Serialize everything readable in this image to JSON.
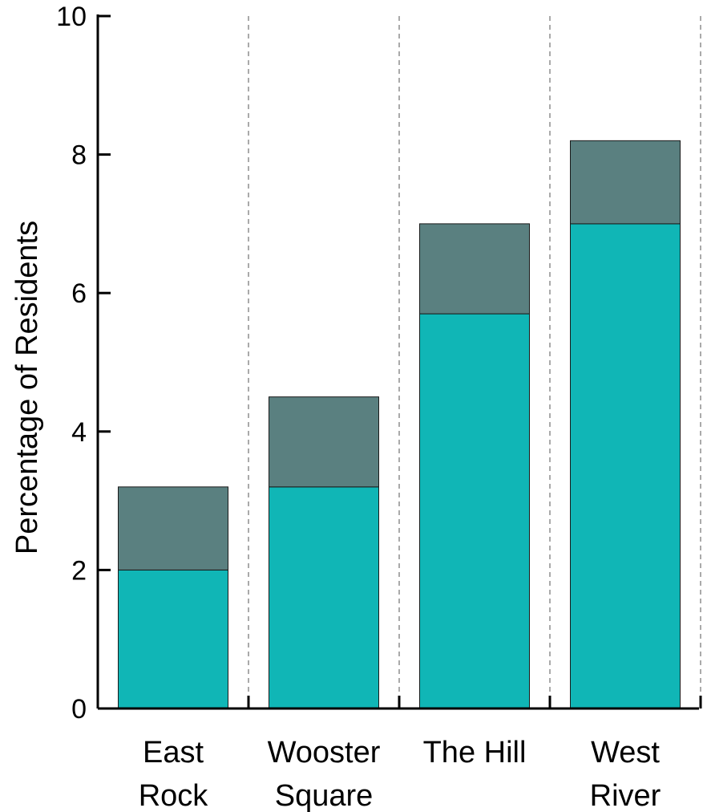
{
  "chart_data": {
    "type": "bar",
    "stacked": true,
    "categories": [
      [
        "East",
        "Rock"
      ],
      [
        "Wooster",
        "Square"
      ],
      [
        "The Hill"
      ],
      [
        "West",
        "River"
      ]
    ],
    "series": [
      {
        "values": [
          2.0,
          3.2,
          5.7,
          7.0
        ],
        "color": "#10b6b6"
      },
      {
        "values": [
          1.2,
          1.3,
          1.3,
          1.2
        ],
        "color": "#5a8080"
      }
    ],
    "totals": [
      3.2,
      4.5,
      7.0,
      8.2
    ],
    "ylabel": "Percentage of Residents",
    "ylim": [
      0,
      10
    ],
    "yticks": [
      "0",
      "2",
      "4",
      "6",
      "8",
      "10"
    ],
    "grid": "vertical dashed separators between categories",
    "legend": "none"
  }
}
